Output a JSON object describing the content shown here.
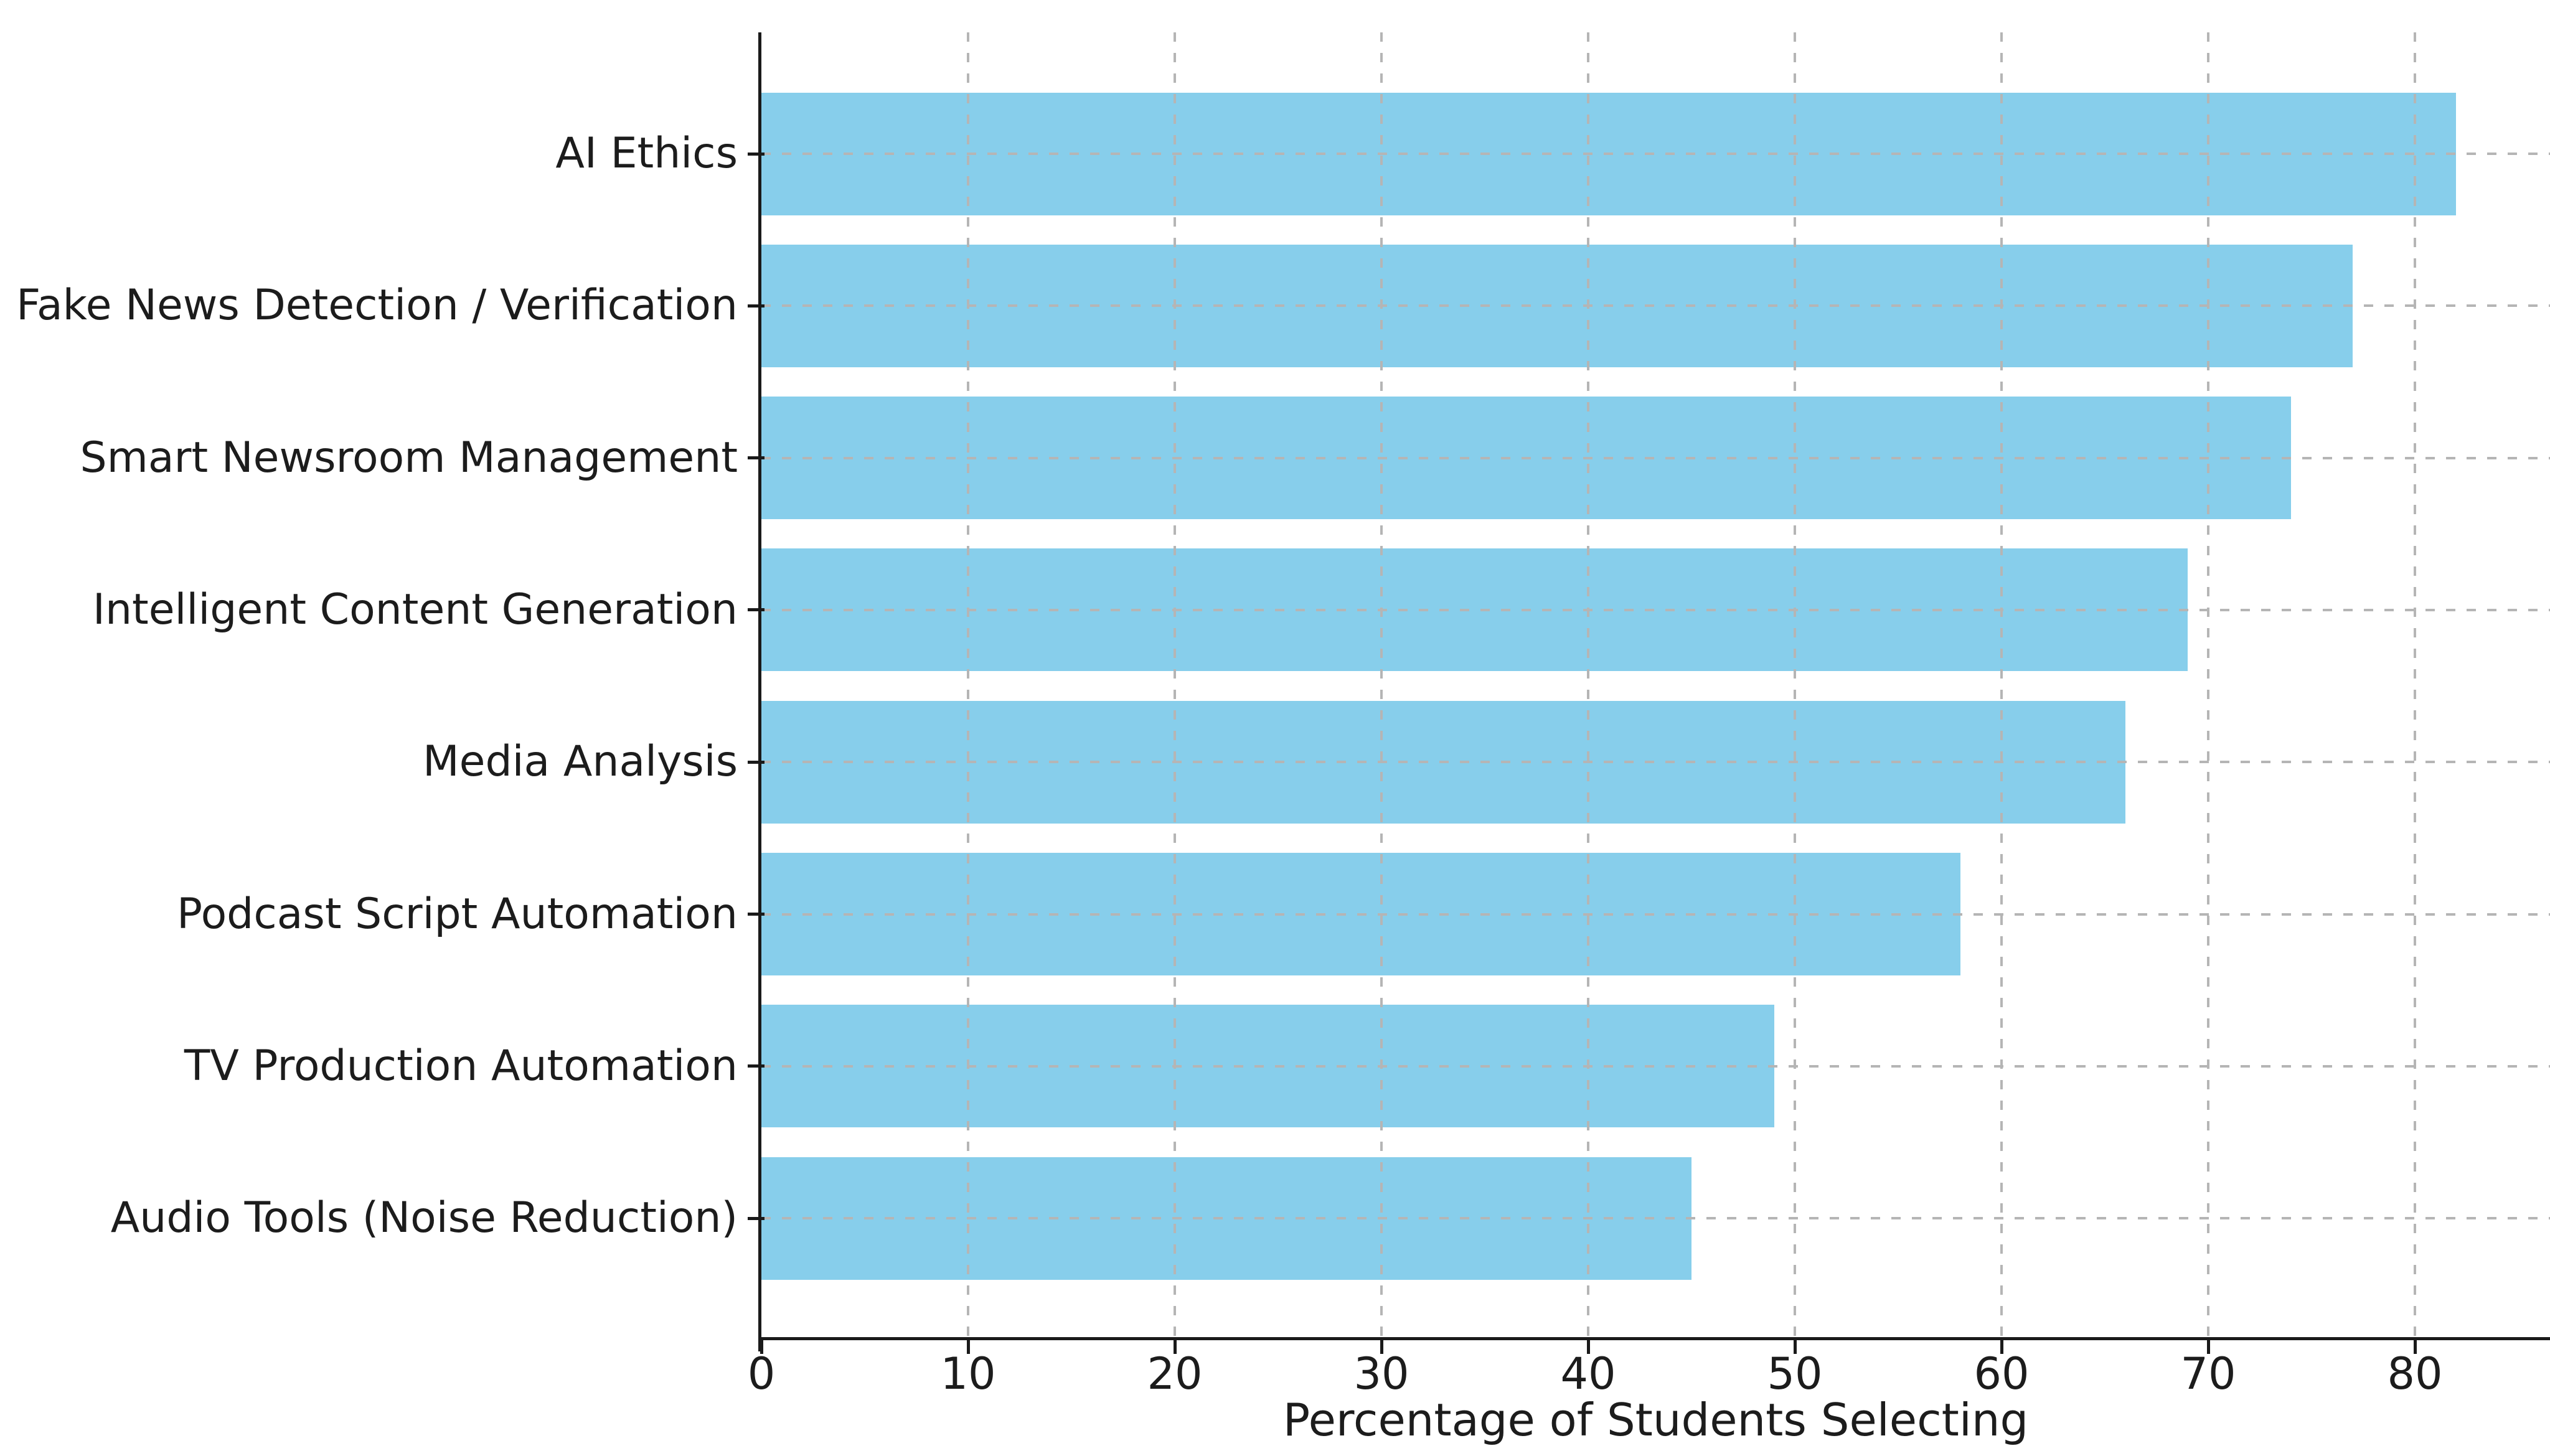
{
  "chart_data": {
    "type": "bar",
    "orientation": "horizontal",
    "title": "",
    "xlabel": "Percentage of Students Selecting",
    "ylabel": "",
    "categories": [
      "AI Ethics",
      "Fake News Detection / Verification",
      "Smart Newsroom Management",
      "Intelligent Content Generation",
      "Media Analysis",
      "Podcast Script Automation",
      "TV Production Automation",
      "Audio Tools (Noise Reduction)"
    ],
    "values": [
      82,
      77,
      74,
      69,
      66,
      58,
      49,
      45
    ],
    "xticks": [
      0,
      10,
      20,
      30,
      40,
      50,
      60,
      70,
      80
    ],
    "xlim": [
      0,
      86.5
    ],
    "grid": "dashed, both axes",
    "legend_position": "none",
    "bar_color": "#87CEEB",
    "background_color": "#ffffff"
  }
}
